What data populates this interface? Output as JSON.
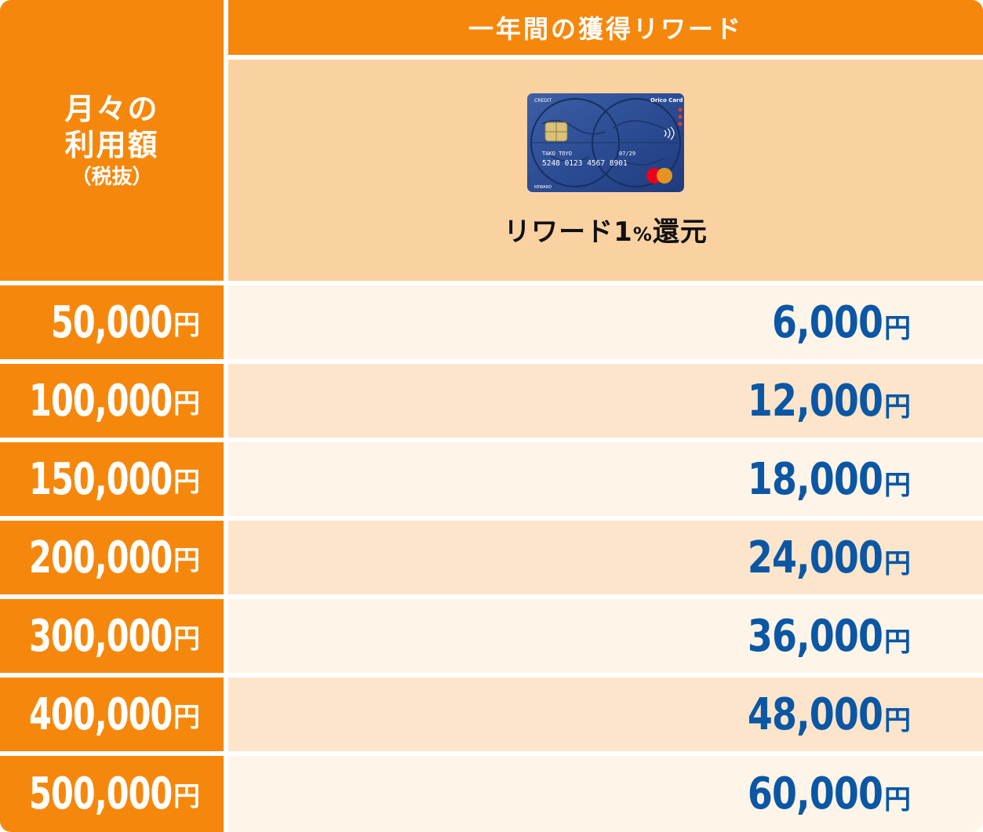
{
  "header": {
    "monthly_line1": "月々の",
    "monthly_line2": "利用額",
    "monthly_line3": "（税抜）",
    "reward_title": "一年間の獲得リワード"
  },
  "card": {
    "image": "credit-card-world-map",
    "brand_text": "Orico Card",
    "holder_name": "TAKO TOYO",
    "expiry": "07/29",
    "number": "5248 0123 4567 8901",
    "label_main": "リワード1",
    "label_percent": "%",
    "label_suffix": "還元"
  },
  "unit": "円",
  "rows": [
    {
      "monthly": "50,000",
      "reward": "6,000"
    },
    {
      "monthly": "100,000",
      "reward": "12,000"
    },
    {
      "monthly": "150,000",
      "reward": "18,000"
    },
    {
      "monthly": "200,000",
      "reward": "24,000"
    },
    {
      "monthly": "300,000",
      "reward": "36,000"
    },
    {
      "monthly": "400,000",
      "reward": "48,000"
    },
    {
      "monthly": "500,000",
      "reward": "60,000"
    }
  ],
  "colors": {
    "orange": "#f5880c",
    "peach": "#fad2a2",
    "row_light": "#fff4e8",
    "row_alt": "#fde5cb",
    "reward_blue": "#0b57a4"
  }
}
